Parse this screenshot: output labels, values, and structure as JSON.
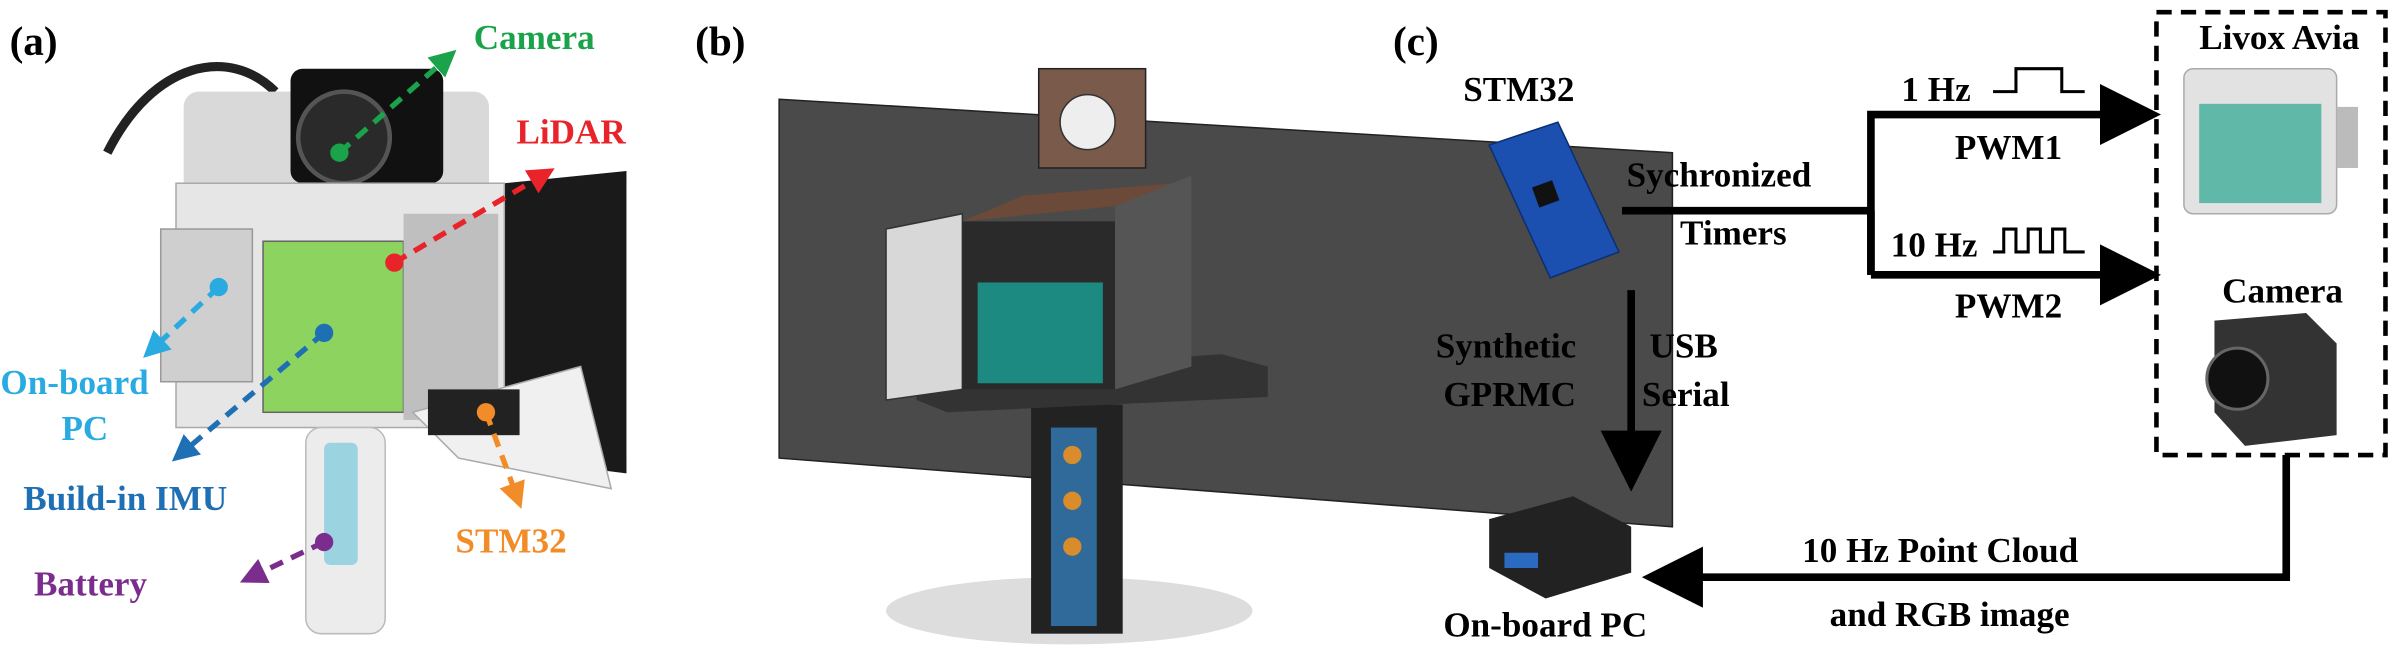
{
  "panel_a": {
    "label": "(a)",
    "camera": "Camera",
    "lidar": "LiDAR",
    "onboard_pc": [
      "On-board",
      "PC"
    ],
    "imu": "Build-in IMU",
    "stm32": "STM32",
    "battery": "Battery"
  },
  "panel_b": {
    "label": "(b)"
  },
  "panel_c": {
    "label": "(c)",
    "stm32": "STM32",
    "sync": [
      "Sychronized",
      "Timers"
    ],
    "pwm1": {
      "freq": "1 Hz",
      "name": "PWM1"
    },
    "pwm2": {
      "freq": "10 Hz",
      "name": "PWM2"
    },
    "livox": "Livox Avia",
    "camera": "Camera",
    "link_left": [
      "Synthetic",
      "GPRMC"
    ],
    "link_right": [
      "USB",
      "Serial"
    ],
    "output": [
      "10 Hz Point Cloud",
      "and RGB image"
    ],
    "onboard_pc": "On-board PC"
  }
}
